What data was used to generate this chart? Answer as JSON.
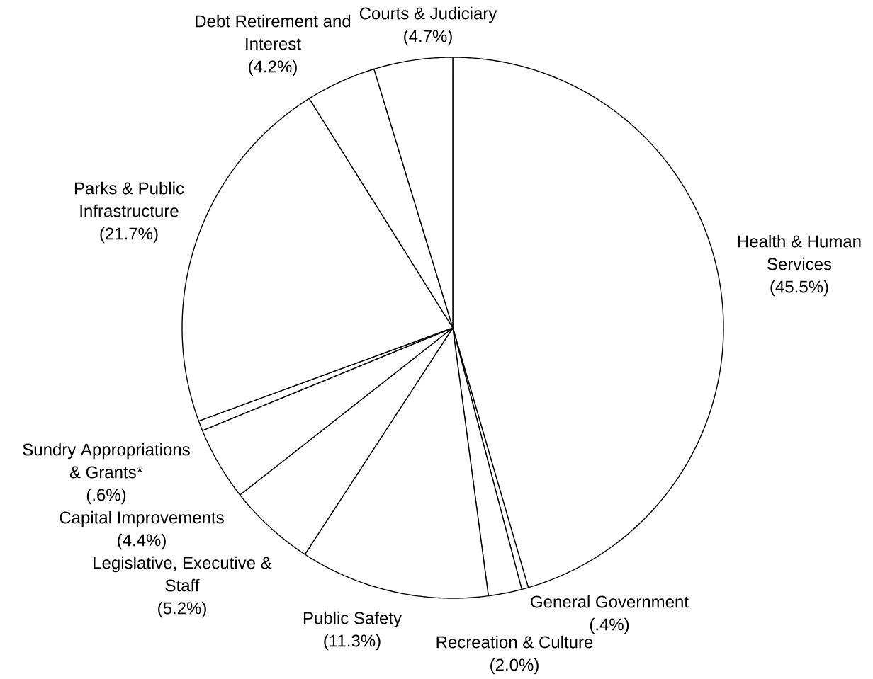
{
  "chart_data": {
    "type": "pie",
    "categories": [
      "Health & Human Services",
      "General Government",
      "Recreation & Culture",
      "Public Safety",
      "Legislative, Executive & Staff",
      "Capital Improvements",
      "Sundry Appropriations & Grants*",
      "Parks & Public Infrastructure",
      "Debt Retirement and Interest",
      "Courts & Judiciary"
    ],
    "values": [
      45.5,
      0.4,
      2.0,
      11.3,
      5.2,
      4.4,
      0.6,
      21.7,
      4.2,
      4.7
    ],
    "colors": [
      "#ffffff",
      "#ffffff",
      "#ffffff",
      "#ffffff",
      "#ffffff",
      "#ffffff",
      "#ffffff",
      "#ffffff",
      "#ffffff",
      "#ffffff"
    ],
    "value_labels": [
      "(45.5%)",
      "(.4%)",
      "(2.0%)",
      "(11.3%)",
      "(5.2%)",
      "(4.4%)",
      "(.6%)",
      "(21.7%)",
      "(4.2%)",
      "(4.7%)"
    ]
  }
}
